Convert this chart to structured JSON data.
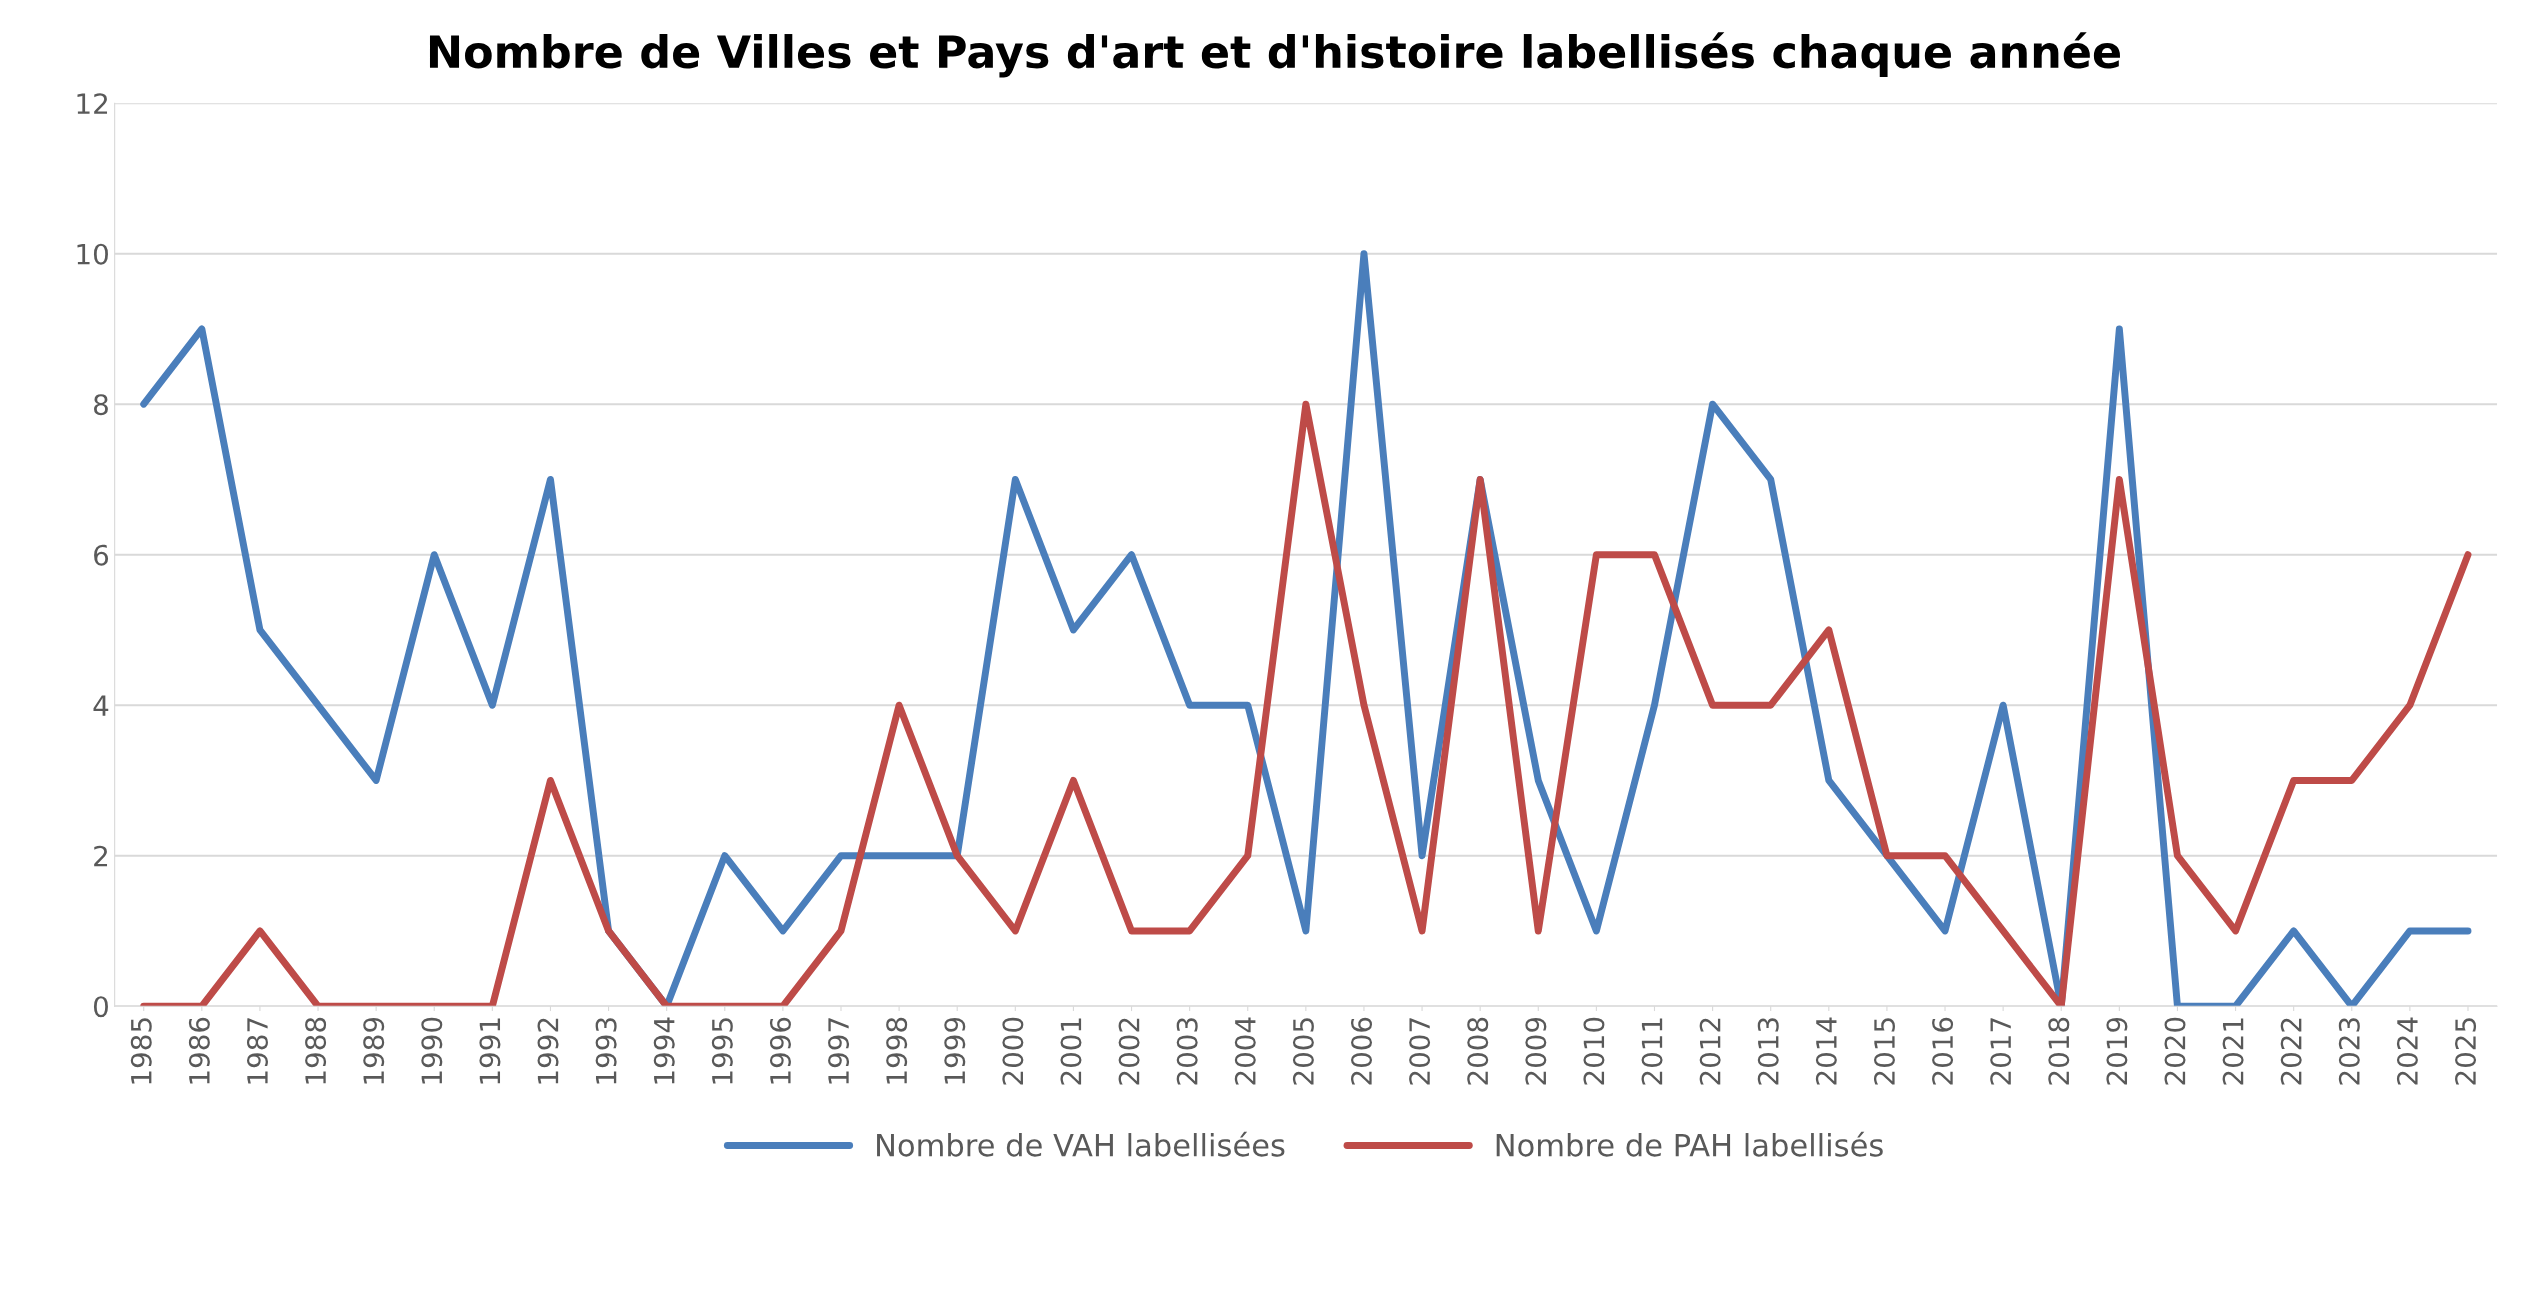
{
  "chart_data": {
    "type": "line",
    "title": "Nombre de Villes et Pays d'art et d'histoire labellisés chaque année",
    "categories": [
      "1985",
      "1986",
      "1987",
      "1988",
      "1989",
      "1990",
      "1991",
      "1992",
      "1993",
      "1994",
      "1995",
      "1996",
      "1997",
      "1998",
      "1999",
      "2000",
      "2001",
      "2002",
      "2003",
      "2004",
      "2005",
      "2006",
      "2007",
      "2008",
      "2009",
      "2010",
      "2011",
      "2012",
      "2013",
      "2014",
      "2015",
      "2016",
      "2017",
      "2018",
      "2019",
      "2020",
      "2021",
      "2022",
      "2023",
      "2024",
      "2025"
    ],
    "series": [
      {
        "name": "Nombre de VAH labellisées",
        "color": "#4a7ebb",
        "values": [
          8,
          9,
          5,
          4,
          3,
          6,
          4,
          7,
          1,
          0,
          2,
          1,
          2,
          2,
          2,
          7,
          5,
          6,
          4,
          4,
          1,
          10,
          2,
          7,
          3,
          1,
          4,
          8,
          7,
          3,
          2,
          1,
          4,
          0,
          9,
          0,
          0,
          1,
          0,
          1,
          1
        ]
      },
      {
        "name": "Nombre de PAH labellisés",
        "color": "#be4b48",
        "values": [
          0,
          0,
          1,
          0,
          0,
          0,
          0,
          3,
          1,
          0,
          0,
          0,
          1,
          4,
          2,
          1,
          3,
          1,
          1,
          2,
          8,
          4,
          1,
          7,
          1,
          6,
          6,
          4,
          4,
          5,
          2,
          2,
          1,
          0,
          7,
          2,
          1,
          3,
          3,
          4,
          6
        ]
      }
    ],
    "ylim": [
      0,
      12
    ],
    "yticks": [
      0,
      2,
      4,
      6,
      8,
      10,
      12
    ],
    "grid": "y",
    "legend": "bottom",
    "marker": "none",
    "line_style": "solid"
  }
}
